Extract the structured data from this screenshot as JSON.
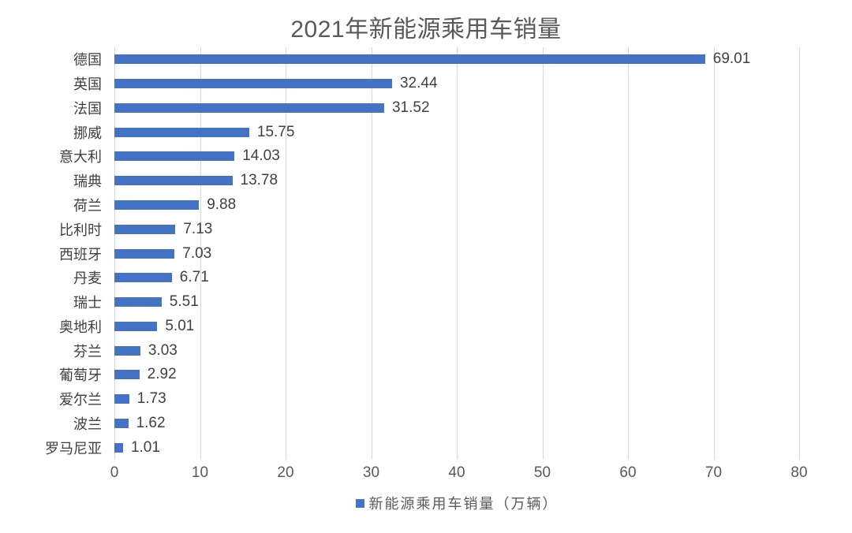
{
  "title": "2021年新能源乘用车销量",
  "legend": {
    "label": "新能源乘用车销量（万辆）",
    "marker": "blue-square"
  },
  "colors": {
    "bar": "#4472c4",
    "gridline": "#d9d9d9",
    "title_text": "#595959",
    "axis_text": "#595959",
    "label_text": "#404040",
    "background": "#ffffff"
  },
  "chart_data": {
    "type": "bar",
    "orientation": "horizontal",
    "title": "2021年新能源乘用车销量",
    "categories": [
      "德国",
      "英国",
      "法国",
      "挪威",
      "意大利",
      "瑞典",
      "荷兰",
      "比利时",
      "西班牙",
      "丹麦",
      "瑞士",
      "奥地利",
      "芬兰",
      "葡萄牙",
      "爱尔兰",
      "波兰",
      "罗马尼亚"
    ],
    "values": [
      69.01,
      32.44,
      31.52,
      15.75,
      14.03,
      13.78,
      9.88,
      7.13,
      7.03,
      6.71,
      5.51,
      5.01,
      3.03,
      2.92,
      1.73,
      1.62,
      1.01
    ],
    "value_labels": [
      "69.01",
      "32.44",
      "31.52",
      "15.75",
      "14.03",
      "13.78",
      "9.88",
      "7.13",
      "7.03",
      "6.71",
      "5.51",
      "5.01",
      "3.03",
      "2.92",
      "1.73",
      "1.62",
      "1.01"
    ],
    "xlabel": "",
    "ylabel": "",
    "xlim": [
      0,
      80
    ],
    "xticks": [
      0,
      10,
      20,
      30,
      40,
      50,
      60,
      70,
      80
    ],
    "grid": true,
    "legend_entries": [
      "新能源乘用车销量（万辆）"
    ],
    "legend_position": "bottom"
  }
}
